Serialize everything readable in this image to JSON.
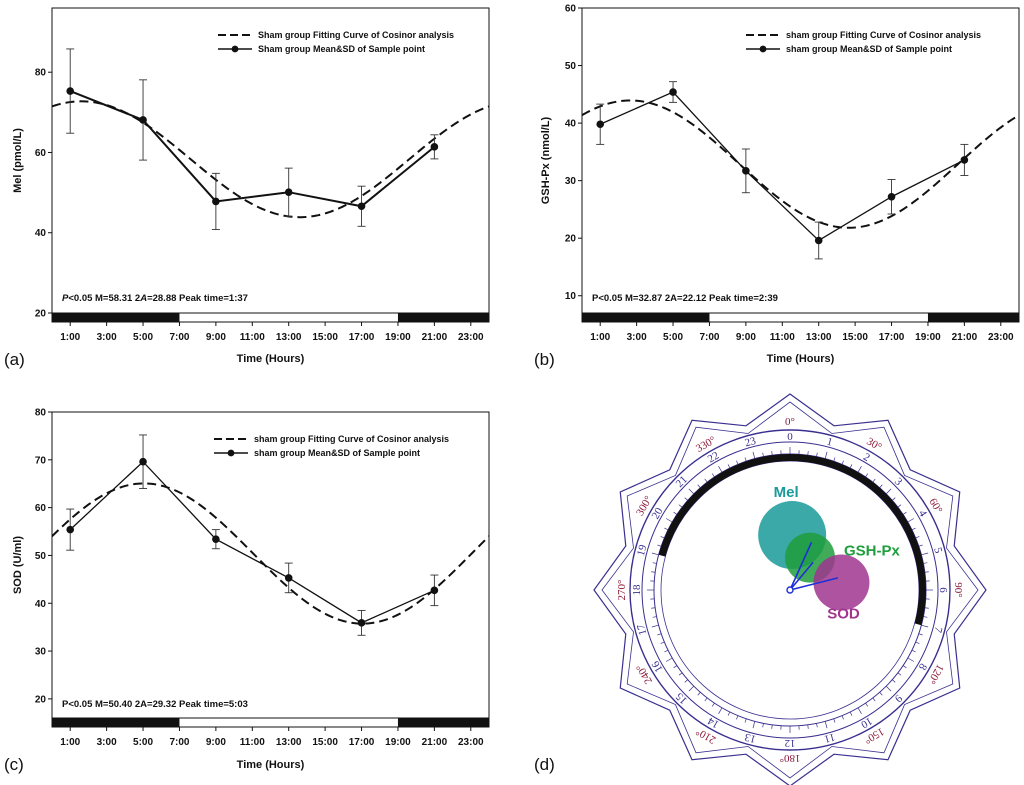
{
  "chart_data": [
    {
      "panel_label": "(a)",
      "type": "line",
      "ylabel": "Mel (pmol/L)",
      "xlabel": "Time (Hours)",
      "ylim": [
        20,
        96
      ],
      "yticks": [
        20,
        40,
        60,
        80
      ],
      "ytick_labels": [
        "20",
        "40",
        "60",
        "80"
      ],
      "xlim": [
        0,
        24
      ],
      "xticks": [
        1,
        3,
        5,
        7,
        9,
        11,
        13,
        15,
        17,
        19,
        21,
        23
      ],
      "xtick_labels": [
        "1:00",
        "3:00",
        "5:00",
        "7:00",
        "9:00",
        "11:00",
        "13:00",
        "15:00",
        "17:00",
        "19:00",
        "21:00",
        "23:00"
      ],
      "legend": [
        "Sham group Fitting Curve of Cosinor analysis",
        "Sham group Mean&SD of Sample point"
      ],
      "points_x": [
        1,
        5,
        9,
        13,
        17,
        21
      ],
      "points_y": [
        75.3,
        68.1,
        47.8,
        50.1,
        46.6,
        61.4
      ],
      "sd": [
        10.5,
        10,
        7,
        6,
        5,
        3
      ],
      "cosinor": {
        "mesor": 58.31,
        "amplitude": 14.44,
        "peak_hour": 1.6167
      },
      "annotation": {
        "p": "P",
        "rest": "<0.05 M=58.31 2",
        "a": "A",
        "tail": "=28.88 Peak time=1:37"
      },
      "dark_bars": [
        [
          0,
          7
        ],
        [
          19,
          24
        ]
      ]
    },
    {
      "panel_label": "(b)",
      "type": "line",
      "ylabel": "GSH-Px (nmol/L)",
      "xlabel": "Time (Hours)",
      "ylim": [
        7,
        60
      ],
      "yticks": [
        10,
        20,
        30,
        40,
        50,
        60
      ],
      "ytick_labels": [
        "10",
        "20",
        "30",
        "40",
        "50",
        "60"
      ],
      "xlim": [
        0,
        24
      ],
      "xticks": [
        1,
        3,
        5,
        7,
        9,
        11,
        13,
        15,
        17,
        19,
        21,
        23
      ],
      "xtick_labels": [
        "1:00",
        "3:00",
        "5:00",
        "7:00",
        "9:00",
        "11:00",
        "13:00",
        "15:00",
        "17:00",
        "19:00",
        "21:00",
        "23:00"
      ],
      "legend": [
        "sham group Fitting Curve of Cosinor analysis",
        "sham group Mean&SD of Sample point"
      ],
      "points_x": [
        1,
        5,
        9,
        13,
        17,
        21
      ],
      "points_y": [
        39.8,
        45.4,
        31.7,
        19.6,
        27.2,
        33.6
      ],
      "sd": [
        3.5,
        1.8,
        3.8,
        3.2,
        3,
        2.7
      ],
      "cosinor": {
        "mesor": 32.87,
        "amplitude": 11.06,
        "peak_hour": 2.65
      },
      "annotation": {
        "text": "P<0.05 M=32.87 2A=22.12 Peak time=2:39"
      },
      "dark_bars": [
        [
          0,
          7
        ],
        [
          19,
          24
        ]
      ]
    },
    {
      "panel_label": "(c)",
      "type": "line",
      "ylabel": "SOD (U/ml)",
      "xlabel": "Time (Hours)",
      "ylim": [
        16,
        80
      ],
      "yticks": [
        20,
        30,
        40,
        50,
        60,
        70,
        80
      ],
      "ytick_labels": [
        "20",
        "30",
        "40",
        "50",
        "60",
        "70",
        "80"
      ],
      "xlim": [
        0,
        24
      ],
      "xticks": [
        1,
        3,
        5,
        7,
        9,
        11,
        13,
        15,
        17,
        19,
        21,
        23
      ],
      "xtick_labels": [
        "1:00",
        "3:00",
        "5:00",
        "7:00",
        "9:00",
        "11:00",
        "13:00",
        "15:00",
        "17:00",
        "19:00",
        "21:00",
        "23:00"
      ],
      "legend": [
        "sham group Fitting Curve of Cosinor analysis",
        "sham group Mean&SD of Sample point"
      ],
      "points_x": [
        1,
        5,
        9,
        13,
        17,
        21
      ],
      "points_y": [
        55.4,
        69.6,
        53.4,
        45.3,
        35.9,
        42.7
      ],
      "sd": [
        4.3,
        5.6,
        2,
        3.1,
        2.6,
        3.2
      ],
      "cosinor": {
        "mesor": 50.4,
        "amplitude": 14.66,
        "peak_hour": 5.05
      },
      "annotation": {
        "text": "P<0.05 M=50.40 2A=29.32 Peak time=5:03"
      },
      "dark_bars": [
        [
          0,
          7
        ],
        [
          19,
          24
        ]
      ]
    },
    {
      "panel_label": "(d)",
      "type": "polar-cosinor",
      "hour_labels": [
        "0",
        "1",
        "2",
        "3",
        "4",
        "5",
        "6",
        "7",
        "8",
        "9",
        "10",
        "11",
        "12",
        "13",
        "14",
        "15",
        "16",
        "17",
        "18",
        "19",
        "20",
        "21",
        "22",
        "23"
      ],
      "degree_labels": [
        "0°",
        "30°",
        "60°",
        "90°",
        "120°",
        "150°",
        "180°",
        "210°",
        "240°",
        "270°",
        "300°",
        "330°"
      ],
      "dark_arc_hours": [
        [
          19,
          7
        ]
      ],
      "ellipses": [
        {
          "name": "Mel",
          "peak_hour": 1.6167,
          "color": "#1a9a9a"
        },
        {
          "name": "GSH-Px",
          "peak_hour": 2.65,
          "color": "#1e9e3c"
        },
        {
          "name": "SOD",
          "peak_hour": 5.05,
          "color": "#a0358f"
        }
      ]
    }
  ]
}
